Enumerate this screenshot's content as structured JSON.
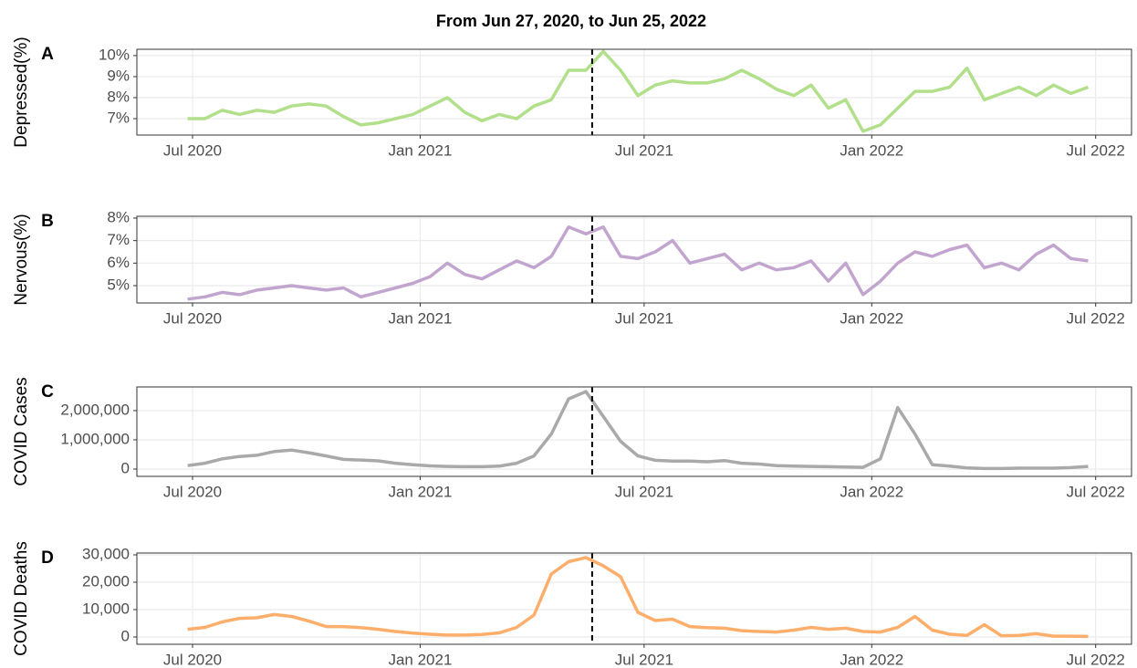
{
  "chart_data": {
    "type": "line",
    "title": "From Jun 27, 2020, to Jun 25, 2022",
    "x": [
      "2020-06-27",
      "2020-07-11",
      "2020-07-25",
      "2020-08-08",
      "2020-08-22",
      "2020-09-05",
      "2020-09-19",
      "2020-10-03",
      "2020-10-17",
      "2020-10-31",
      "2020-11-14",
      "2020-11-28",
      "2020-12-12",
      "2020-12-26",
      "2021-01-09",
      "2021-01-23",
      "2021-02-06",
      "2021-02-20",
      "2021-03-06",
      "2021-03-20",
      "2021-04-03",
      "2021-04-17",
      "2021-05-01",
      "2021-05-15",
      "2021-05-29",
      "2021-06-12",
      "2021-06-26",
      "2021-07-10",
      "2021-07-24",
      "2021-08-07",
      "2021-08-21",
      "2021-09-04",
      "2021-09-18",
      "2021-10-02",
      "2021-10-16",
      "2021-10-30",
      "2021-11-13",
      "2021-11-27",
      "2021-12-11",
      "2021-12-25",
      "2022-01-08",
      "2022-01-22",
      "2022-02-05",
      "2022-02-19",
      "2022-03-05",
      "2022-03-19",
      "2022-04-02",
      "2022-04-16",
      "2022-04-30",
      "2022-05-14",
      "2022-05-28",
      "2022-06-11",
      "2022-06-25"
    ],
    "xlim": [
      "2020-05-17",
      "2022-07-30"
    ],
    "xticks": [
      {
        "value": "2020-07-01",
        "label": "Jul 2020"
      },
      {
        "value": "2021-01-01",
        "label": "Jan 2021"
      },
      {
        "value": "2021-07-01",
        "label": "Jul 2021"
      },
      {
        "value": "2022-01-01",
        "label": "Jan 2022"
      },
      {
        "value": "2022-07-01",
        "label": "Jul 2022"
      }
    ],
    "vline": "2021-05-20",
    "grid": true,
    "panels": [
      {
        "label": "A",
        "ylabel": "Depressed(%)",
        "color": "#b2df8a",
        "values": [
          7.0,
          7.0,
          7.4,
          7.2,
          7.4,
          7.3,
          7.6,
          7.7,
          7.6,
          7.1,
          6.7,
          6.8,
          7.0,
          7.2,
          7.6,
          8.0,
          7.3,
          6.9,
          7.2,
          7.0,
          7.6,
          7.9,
          9.3,
          9.3,
          10.2,
          9.3,
          8.1,
          8.6,
          8.8,
          8.7,
          8.7,
          8.9,
          9.3,
          8.9,
          8.4,
          8.1,
          8.6,
          7.5,
          7.9,
          6.4,
          6.7,
          7.5,
          8.3,
          8.3,
          8.5,
          9.4,
          7.9,
          8.2,
          8.5,
          8.1,
          8.6,
          8.2,
          8.5
        ],
        "ylim": [
          6.22,
          10.3
        ],
        "yticks": [
          {
            "value": 7,
            "label": "7%"
          },
          {
            "value": 8,
            "label": "8%"
          },
          {
            "value": 9,
            "label": "9%"
          },
          {
            "value": 10,
            "label": "10%"
          }
        ]
      },
      {
        "label": "B",
        "ylabel": "Nervous(%)",
        "color": "#c2a5cf",
        "values": [
          4.4,
          4.5,
          4.7,
          4.6,
          4.8,
          4.9,
          5.0,
          4.9,
          4.8,
          4.9,
          4.5,
          4.7,
          4.9,
          5.1,
          5.4,
          6.0,
          5.5,
          5.3,
          5.7,
          6.1,
          5.8,
          6.3,
          7.6,
          7.3,
          7.6,
          6.3,
          6.2,
          6.5,
          7.0,
          6.0,
          6.2,
          6.4,
          5.7,
          6.0,
          5.7,
          5.8,
          6.1,
          5.2,
          6.0,
          4.6,
          5.2,
          6.0,
          6.5,
          6.3,
          6.6,
          6.8,
          5.8,
          6.0,
          5.7,
          6.4,
          6.8,
          6.2,
          6.1
        ],
        "ylim": [
          4.23,
          8.08
        ],
        "yticks": [
          {
            "value": 5,
            "label": "5%"
          },
          {
            "value": 6,
            "label": "6%"
          },
          {
            "value": 7,
            "label": "7%"
          },
          {
            "value": 8,
            "label": "8%"
          }
        ]
      },
      {
        "label": "C",
        "ylabel": "COVID Cases",
        "color": "#a9a9a9",
        "values": [
          120000,
          200000,
          350000,
          430000,
          470000,
          600000,
          650000,
          560000,
          450000,
          330000,
          310000,
          280000,
          200000,
          150000,
          110000,
          90000,
          80000,
          80000,
          100000,
          200000,
          450000,
          1200000,
          2400000,
          2650000,
          1800000,
          950000,
          450000,
          300000,
          270000,
          270000,
          250000,
          290000,
          200000,
          170000,
          120000,
          100000,
          90000,
          80000,
          70000,
          60000,
          350000,
          2100000,
          1200000,
          150000,
          100000,
          40000,
          20000,
          20000,
          30000,
          30000,
          30000,
          50000,
          90000
        ],
        "ylim": [
          -250000,
          2810000
        ],
        "yticks": [
          0,
          {
            "value": 1000000,
            "label": "1,000,000"
          },
          {
            "value": 2000000,
            "label": "2,000,000"
          }
        ]
      },
      {
        "label": "D",
        "ylabel": "COVID Deaths",
        "color": "#fdae6b",
        "values": [
          2800,
          3500,
          5500,
          6800,
          7000,
          8200,
          7500,
          5800,
          3800,
          3800,
          3400,
          2800,
          2000,
          1400,
          1000,
          700,
          700,
          900,
          1500,
          3500,
          8000,
          23000,
          27500,
          29000,
          26000,
          22000,
          9000,
          6000,
          6500,
          3800,
          3400,
          3200,
          2300,
          2000,
          1800,
          2500,
          3500,
          2800,
          3200,
          2000,
          1800,
          3500,
          7500,
          2500,
          1000,
          600,
          4500,
          400,
          600,
          1200,
          300,
          300,
          200
        ],
        "ylim": [
          -2667,
          30667
        ],
        "yticks": [
          0,
          {
            "value": 10000,
            "label": "10,000"
          },
          {
            "value": 20000,
            "label": "20,000"
          },
          {
            "value": 30000,
            "label": "30,000"
          }
        ]
      }
    ]
  }
}
